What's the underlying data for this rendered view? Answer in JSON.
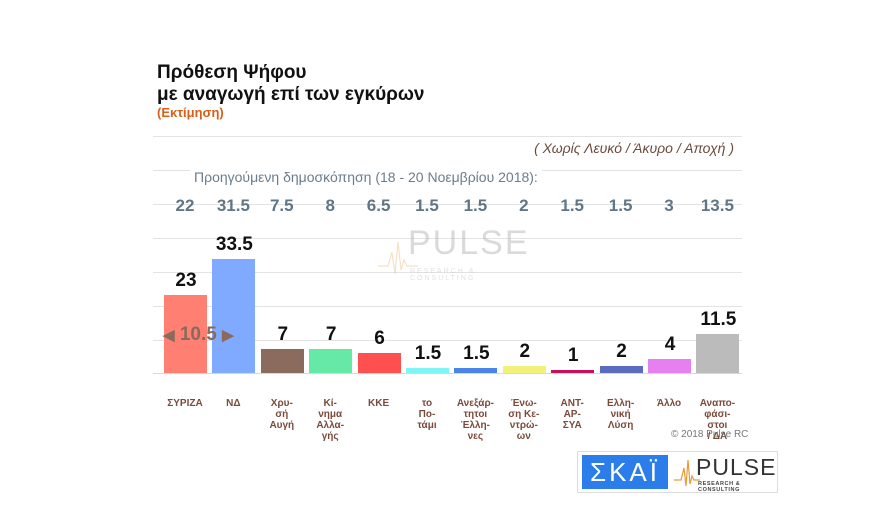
{
  "header": {
    "title_line1": "Πρόθεση Ψήφου",
    "title_line2": "με αναγωγή επί των εγκύρων",
    "subtitle": "(Εκτίμηση)",
    "note": "( Χωρίς Λευκό / Άκυρο / Αποχή )"
  },
  "previous": {
    "label": "Προηγούμενη δημοσκόπηση (18 - 20 Νοεμβρίου 2018):",
    "values": [
      "22",
      "31.5",
      "7.5",
      "8",
      "6.5",
      "1.5",
      "1.5",
      "2",
      "1.5",
      "1.5",
      "3",
      "13.5"
    ]
  },
  "difference": {
    "label": "10.5",
    "left_arrow": "◀",
    "right_arrow": "▶"
  },
  "footer": {
    "copyright": "© 2018 Pulse RC",
    "watermark_main": "PULSE",
    "watermark_sub": "RESEARCH & CONSULTING",
    "logo_skai": "ΣΚΑΪ",
    "logo_pulse": "PULSE",
    "logo_pulse_sub": "RESEARCH & CONSULTING"
  },
  "chart_data": {
    "type": "bar",
    "title": "Πρόθεση Ψήφου με αναγωγή επί των εγκύρων (Εκτίμηση)",
    "subtitle": "( Χωρίς Λευκό / Άκυρο / Αποχή )",
    "xlabel": "",
    "ylabel": "",
    "ylim": [
      0,
      70
    ],
    "grid": true,
    "categories": [
      "ΣΥΡΙΖΑ",
      "ΝΔ",
      "Χρυσή Αυγή",
      "Κίνημα Αλλαγής",
      "ΚΚΕ",
      "το Ποτάμι",
      "Ανεξάρτητοι Έλληνες",
      "Ένωση Κεντρώων",
      "ΑΝΤΑΡΣΥΑ",
      "Ελληνική Λύση",
      "Άλλο",
      "Αναποφάσιστοι / ΔΑ"
    ],
    "category_labels": [
      "ΣΥΡΙΖΑ",
      "ΝΔ",
      "Χρυ-\nσή\nΑυγή",
      "Κί-\nνημα\nΑλλα-\nγής",
      "ΚΚΕ",
      "το\nΠο-\nτάμι",
      "Ανεξάρ-\nτητοι\nΈλλη-\nνες",
      "Ένω-\nση Κε-\nντρώ-\nων",
      "ΑΝΤ-\nΑΡ-\nΣΥΑ",
      "Ελλη-\nνική\nΛύση",
      "Άλλο",
      "Αναπο-\nφάσι-\nστοι\n/ ΔΑ"
    ],
    "series": [
      {
        "name": "Εκτίμηση",
        "values": [
          23,
          33.5,
          7,
          7,
          6,
          1.5,
          1.5,
          2,
          1,
          2,
          4,
          11.5
        ],
        "labels": [
          "23",
          "33.5",
          "7",
          "7",
          "6",
          "1.5",
          "1.5",
          "2",
          "1",
          "2",
          "4",
          "11.5"
        ]
      },
      {
        "name": "Προηγούμενη δημοσκόπηση (18 - 20 Νοεμβρίου 2018)",
        "values": [
          22,
          31.5,
          7.5,
          8,
          6.5,
          1.5,
          1.5,
          2,
          1.5,
          1.5,
          3,
          13.5
        ]
      }
    ],
    "colors": [
      "#ff8073",
      "#7faaff",
      "#8c6b5f",
      "#66e8a6",
      "#ff5050",
      "#7ff5f5",
      "#4a86e8",
      "#f2f27a",
      "#c8105a",
      "#5b6bbf",
      "#e67fef",
      "#bbbbbb"
    ],
    "annotation": "◀ 10.5 ▶"
  }
}
